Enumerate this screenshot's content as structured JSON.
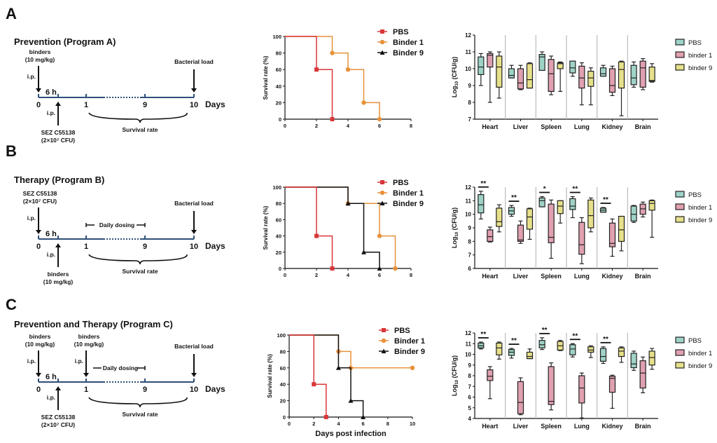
{
  "panels": [
    {
      "letter": "A",
      "title": "Prevention (Program A)",
      "timeline": {
        "ticks": [
          "0",
          "1",
          "9",
          "10"
        ],
        "days_label": "Days",
        "six_h": "6 h",
        "top_events": [
          {
            "lines": [
              "binders",
              "(10 mg/kg)"
            ],
            "route": "i.p.",
            "at": "0"
          }
        ],
        "bottom_event": {
          "lines": [
            "SEZ C55138",
            "(2×10⁷ CFU)"
          ],
          "route": "i.p."
        },
        "bacterial_load": "Bacterial load",
        "survival_label": "Survival rate",
        "daily_dosing": null
      }
    },
    {
      "letter": "B",
      "title": "Therapy (Program B)",
      "timeline": {
        "ticks": [
          "0",
          "1",
          "9",
          "10"
        ],
        "days_label": "Days",
        "six_h": "6 h",
        "top_events": [
          {
            "lines": [
              "SEZ C55138",
              "(2×10⁷ CFU)"
            ],
            "route": "i.p.",
            "at": "0"
          }
        ],
        "bottom_event": {
          "lines": [
            "binders",
            "(10 mg/kg)"
          ],
          "route": "i.p."
        },
        "bacterial_load": "Bacterial load",
        "survival_label": "Survival rate",
        "daily_dosing": "Daily dosing"
      }
    },
    {
      "letter": "C",
      "title": "Prevention and Therapy (Program C)",
      "timeline": {
        "ticks": [
          "0",
          "1",
          "9",
          "10"
        ],
        "days_label": "Days",
        "six_h": "6 h",
        "top_events": [
          {
            "lines": [
              "binders",
              "(10 mg/kg)"
            ],
            "route": "i.p.",
            "at": "0"
          },
          {
            "lines": [
              "binders",
              "(10 mg/kg)"
            ],
            "route": "i.p.",
            "at": "1"
          }
        ],
        "bottom_event": {
          "lines": [
            "SEZ C55138",
            "(2×10⁷ CFU)"
          ],
          "route": "i.p."
        },
        "bacterial_load": "Bacterial load",
        "survival_label": "Survival rate",
        "daily_dosing": "Daily dosing"
      }
    }
  ],
  "colors": {
    "PBS": "#d9373a",
    "Binder 1": "#e8913a",
    "Binder 9": "#111111",
    "box_PBS": "#9fd3c7",
    "box_binder1": "#e0a0b0",
    "box_binder9": "#e6e08a",
    "timeline": "#2e4f7a"
  },
  "chart_data": [
    {
      "type": "line",
      "panel": "A",
      "title": "",
      "xlabel": "",
      "ylabel": "Survival rate (%)",
      "xlim": [
        0,
        8
      ],
      "ylim": [
        0,
        100
      ],
      "xticks": [
        0,
        2,
        4,
        6,
        8
      ],
      "yticks": [
        0,
        20,
        40,
        60,
        80,
        100
      ],
      "legend": "top-right",
      "series": [
        {
          "name": "PBS",
          "marker": "square",
          "x": [
            0,
            2,
            3
          ],
          "y": [
            100,
            60,
            0
          ]
        },
        {
          "name": "Binder 1",
          "marker": "circle",
          "x": [
            0,
            3,
            4,
            5,
            6
          ],
          "y": [
            100,
            80,
            60,
            20,
            0
          ]
        },
        {
          "name": "Binder 9",
          "marker": "triangle",
          "x": [],
          "y": []
        }
      ]
    },
    {
      "type": "box",
      "panel": "A",
      "ylabel": "Log10 (CFU/g)",
      "ylim": [
        7,
        12
      ],
      "yticks": [
        7,
        8,
        9,
        10,
        11,
        12
      ],
      "categories": [
        "Heart",
        "Liver",
        "Spleen",
        "Lung",
        "Kidney",
        "Brain"
      ],
      "legend": "right",
      "legend_labels": [
        "PBS",
        "binder 1",
        "binder 9"
      ],
      "series": [
        {
          "name": "PBS",
          "boxes": [
            [
              9.0,
              9.65,
              10.1,
              10.7,
              10.9
            ],
            [
              9.45,
              9.45,
              9.6,
              10.0,
              10.2
            ],
            [
              9.9,
              9.9,
              10.7,
              10.85,
              11.0
            ],
            [
              9.55,
              9.75,
              10.05,
              10.45,
              10.45
            ],
            [
              9.55,
              9.55,
              9.7,
              10.05,
              10.2
            ],
            [
              8.9,
              9.05,
              9.45,
              10.2,
              10.4
            ]
          ]
        },
        {
          "name": "binder 1",
          "boxes": [
            [
              8.0,
              10.1,
              10.8,
              10.9,
              11.0
            ],
            [
              8.75,
              8.8,
              9.15,
              10.0,
              10.2
            ],
            [
              8.45,
              8.65,
              9.7,
              10.55,
              10.75
            ],
            [
              7.85,
              8.85,
              9.45,
              10.15,
              10.35
            ],
            [
              8.4,
              8.6,
              9.0,
              10.0,
              10.15
            ],
            [
              8.75,
              8.9,
              10.05,
              10.45,
              10.6
            ]
          ]
        },
        {
          "name": "binder 9",
          "boxes": [
            [
              8.25,
              8.9,
              10.1,
              10.75,
              11.0
            ],
            [
              8.85,
              8.85,
              9.35,
              10.3,
              10.35
            ],
            [
              8.65,
              10.0,
              10.3,
              10.35,
              10.4
            ],
            [
              7.85,
              8.95,
              9.45,
              9.85,
              10.05
            ],
            [
              7.2,
              8.85,
              9.95,
              10.4,
              10.45
            ],
            [
              9.2,
              9.25,
              9.3,
              10.1,
              10.3
            ]
          ]
        }
      ],
      "significance": []
    },
    {
      "type": "line",
      "panel": "B",
      "title": "",
      "xlabel": "",
      "ylabel": "Survival rate (%)",
      "xlim": [
        0,
        8
      ],
      "ylim": [
        0,
        100
      ],
      "xticks": [
        0,
        2,
        4,
        6,
        8
      ],
      "yticks": [
        0,
        20,
        40,
        60,
        80,
        100
      ],
      "legend": "top-right",
      "series": [
        {
          "name": "PBS",
          "marker": "square",
          "x": [
            0,
            2,
            3
          ],
          "y": [
            100,
            40,
            0
          ]
        },
        {
          "name": "Binder 1",
          "marker": "circle",
          "x": [
            0,
            4,
            6,
            7
          ],
          "y": [
            100,
            80,
            40,
            0
          ]
        },
        {
          "name": "Binder 9",
          "marker": "triangle",
          "x": [
            0,
            4,
            5,
            6
          ],
          "y": [
            100,
            80,
            20,
            0
          ]
        }
      ]
    },
    {
      "type": "box",
      "panel": "B",
      "ylabel": "Log10 (CFU/g)",
      "ylim": [
        6,
        12
      ],
      "yticks": [
        6,
        7,
        8,
        9,
        10,
        11,
        12
      ],
      "categories": [
        "Heart",
        "Liver",
        "Spleen",
        "Lung",
        "Kidney",
        "Brain"
      ],
      "legend": "right",
      "legend_labels": [
        "PBS",
        "binder 1",
        "binder 9"
      ],
      "series": [
        {
          "name": "PBS",
          "boxes": [
            [
              9.65,
              10.1,
              10.7,
              11.45,
              11.7
            ],
            [
              9.85,
              10.0,
              10.25,
              10.5,
              10.65
            ],
            [
              10.55,
              10.55,
              11.0,
              11.2,
              11.3
            ],
            [
              9.75,
              10.35,
              10.6,
              11.15,
              11.3
            ],
            [
              10.15,
              10.15,
              10.3,
              10.45,
              10.5
            ],
            [
              9.4,
              9.5,
              10.0,
              10.6,
              10.65
            ]
          ]
        },
        {
          "name": "binder 1",
          "boxes": [
            [
              7.95,
              8.0,
              8.35,
              8.85,
              9.05
            ],
            [
              7.85,
              8.0,
              8.1,
              9.2,
              9.5
            ],
            [
              6.75,
              7.9,
              8.3,
              10.75,
              11.05
            ],
            [
              6.35,
              7.05,
              7.75,
              9.4,
              9.75
            ],
            [
              6.9,
              7.6,
              7.85,
              9.35,
              9.65
            ],
            [
              9.8,
              10.0,
              10.4,
              10.75,
              10.9
            ]
          ]
        },
        {
          "name": "binder 9",
          "boxes": [
            [
              8.7,
              9.1,
              9.45,
              10.45,
              10.7
            ],
            [
              8.15,
              8.9,
              9.8,
              10.4,
              10.45
            ],
            [
              9.35,
              10.05,
              10.6,
              11.0,
              11.0
            ],
            [
              8.7,
              9.0,
              9.9,
              11.05,
              11.2
            ],
            [
              7.3,
              8.0,
              8.85,
              9.85,
              9.85
            ],
            [
              8.3,
              10.3,
              10.8,
              11.0,
              11.05
            ]
          ]
        }
      ],
      "significance": [
        {
          "category": "Heart",
          "label": "**"
        },
        {
          "category": "Liver",
          "label": "**"
        },
        {
          "category": "Spleen",
          "label": "*"
        },
        {
          "category": "Lung",
          "label": "**"
        },
        {
          "category": "Kidney",
          "label": "**"
        }
      ]
    },
    {
      "type": "line",
      "panel": "C",
      "title": "",
      "xlabel": "Days post infection",
      "ylabel": "Survival rate (%)",
      "xlim": [
        0,
        10
      ],
      "ylim": [
        0,
        100
      ],
      "xticks": [
        0,
        2,
        4,
        6,
        8,
        10
      ],
      "yticks": [
        0,
        20,
        40,
        60,
        80,
        100
      ],
      "legend": "top-right",
      "series": [
        {
          "name": "PBS",
          "marker": "square",
          "x": [
            0,
            2,
            3
          ],
          "y": [
            100,
            40,
            0
          ]
        },
        {
          "name": "Binder 1",
          "marker": "circle",
          "x": [
            0,
            4,
            5,
            10
          ],
          "y": [
            100,
            80,
            60,
            60
          ]
        },
        {
          "name": "Binder 9",
          "marker": "triangle",
          "x": [
            0,
            4,
            5,
            6
          ],
          "y": [
            100,
            60,
            20,
            0
          ]
        }
      ]
    },
    {
      "type": "box",
      "panel": "C",
      "ylabel": "Log10 (CFU/g)",
      "ylim": [
        4,
        12
      ],
      "yticks": [
        4,
        5,
        6,
        7,
        8,
        9,
        10,
        11,
        12
      ],
      "categories": [
        "Heart",
        "Liver",
        "Spleen",
        "Lung",
        "Kidney",
        "Brain"
      ],
      "legend": "right",
      "legend_labels": [
        "PBS",
        "binder 1",
        "binder 9"
      ],
      "series": [
        {
          "name": "PBS",
          "boxes": [
            [
              10.5,
              10.6,
              10.8,
              11.05,
              11.15
            ],
            [
              9.65,
              9.9,
              10.2,
              10.45,
              10.55
            ],
            [
              10.45,
              10.6,
              10.9,
              11.3,
              11.55
            ],
            [
              9.75,
              9.95,
              10.5,
              10.9,
              11.0
            ],
            [
              9.15,
              9.35,
              9.8,
              10.55,
              10.7
            ],
            [
              8.5,
              8.75,
              9.1,
              10.1,
              10.3
            ]
          ]
        },
        {
          "name": "binder 1",
          "boxes": [
            [
              5.85,
              7.55,
              7.95,
              8.55,
              8.85
            ],
            [
              4.35,
              4.45,
              5.5,
              7.45,
              7.8
            ],
            [
              4.8,
              5.3,
              5.6,
              8.85,
              9.2
            ],
            [
              4.05,
              5.45,
              6.85,
              8.0,
              8.25
            ],
            [
              4.95,
              6.45,
              7.75,
              7.95,
              8.05
            ],
            [
              6.4,
              6.85,
              8.25,
              9.4,
              9.75
            ]
          ]
        },
        {
          "name": "binder 9",
          "boxes": [
            [
              9.55,
              9.95,
              10.6,
              11.05,
              11.15
            ],
            [
              9.6,
              9.6,
              9.8,
              10.2,
              10.5
            ],
            [
              10.35,
              10.4,
              10.8,
              11.2,
              11.3
            ],
            [
              9.7,
              10.2,
              10.4,
              10.7,
              10.8
            ],
            [
              9.25,
              9.8,
              10.3,
              10.6,
              10.7
            ],
            [
              8.6,
              9.0,
              9.7,
              10.3,
              10.55
            ]
          ]
        }
      ],
      "significance": [
        {
          "category": "Heart",
          "label": "**"
        },
        {
          "category": "Liver",
          "label": "**"
        },
        {
          "category": "Spleen",
          "label": "**"
        },
        {
          "category": "Lung",
          "label": "**"
        },
        {
          "category": "Kidney",
          "label": "**"
        }
      ]
    }
  ]
}
